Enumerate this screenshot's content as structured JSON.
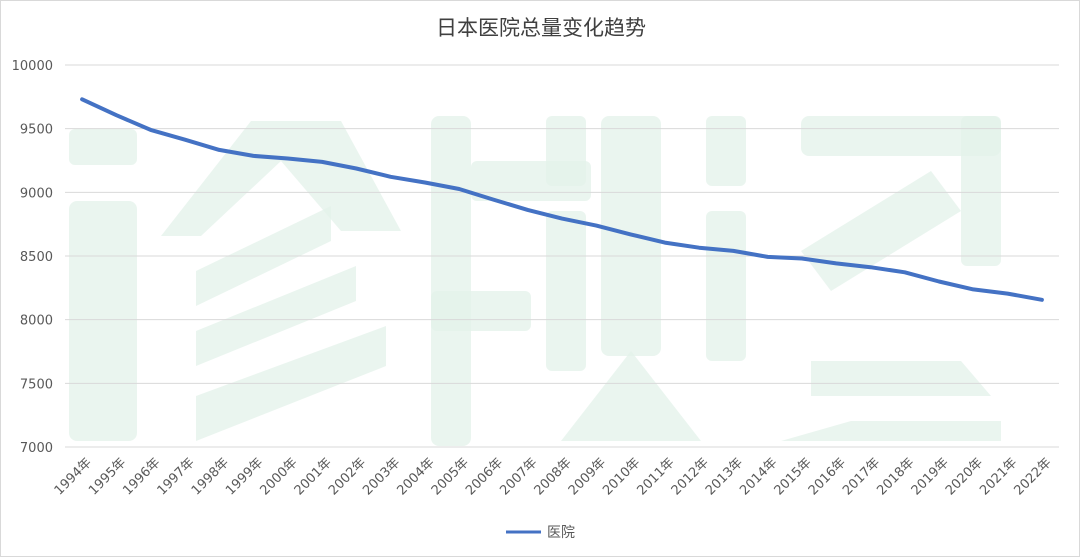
{
  "chart_data": {
    "type": "line",
    "title": "日本医院总量变化趋势",
    "xlabel": "",
    "ylabel": "",
    "categories": [
      "1994年",
      "1995年",
      "1996年",
      "1997年",
      "1998年",
      "1999年",
      "2000年",
      "2001年",
      "2002年",
      "2003年",
      "2004年",
      "2005年",
      "2006年",
      "2007年",
      "2008年",
      "2009年",
      "2010年",
      "2011年",
      "2012年",
      "2013年",
      "2014年",
      "2015年",
      "2016年",
      "2017年",
      "2018年",
      "2019年",
      "2020年",
      "2021年",
      "2022年"
    ],
    "series": [
      {
        "name": "医院",
        "color": "#4472c4",
        "values": [
          9731,
          9606,
          9490,
          9413,
          9333,
          9286,
          9266,
          9239,
          9187,
          9122,
          9077,
          9026,
          8943,
          8862,
          8794,
          8739,
          8670,
          8605,
          8565,
          8540,
          8493,
          8480,
          8442,
          8412,
          8372,
          8300,
          8238,
          8205,
          8156
        ]
      }
    ],
    "ylim": [
      7000,
      10000
    ],
    "y_ticks": [
      7000,
      7500,
      8000,
      8500,
      9000,
      9500,
      10000
    ],
    "grid": true,
    "legend_position": "bottom"
  }
}
